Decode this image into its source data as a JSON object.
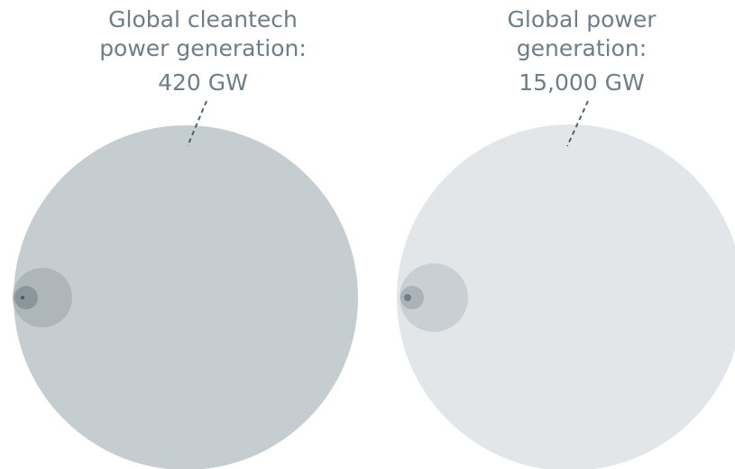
{
  "chart_data": {
    "type": "bubble",
    "panels": [
      {
        "label_lines": [
          "Global cleantech",
          "power generation:",
          "420 GW"
        ],
        "circles": [
          {
            "role": "outer",
            "color": "#c6cdd1"
          },
          {
            "role": "mid",
            "color": "#aeb6ba"
          },
          {
            "role": "small",
            "color": "#8a969c"
          },
          {
            "role": "dot",
            "color": "#4b5961"
          }
        ]
      },
      {
        "label_lines": [
          "Global power",
          "generation:",
          "15,000 GW"
        ],
        "circles": [
          {
            "role": "outer",
            "color": "#e2e6e8"
          },
          {
            "role": "mid",
            "color": "#c9cfd2"
          },
          {
            "role": "small",
            "color": "#aab3b7"
          },
          {
            "role": "dot",
            "color": "#6f7d84"
          }
        ]
      }
    ],
    "annotation_color": "#4f626c"
  }
}
